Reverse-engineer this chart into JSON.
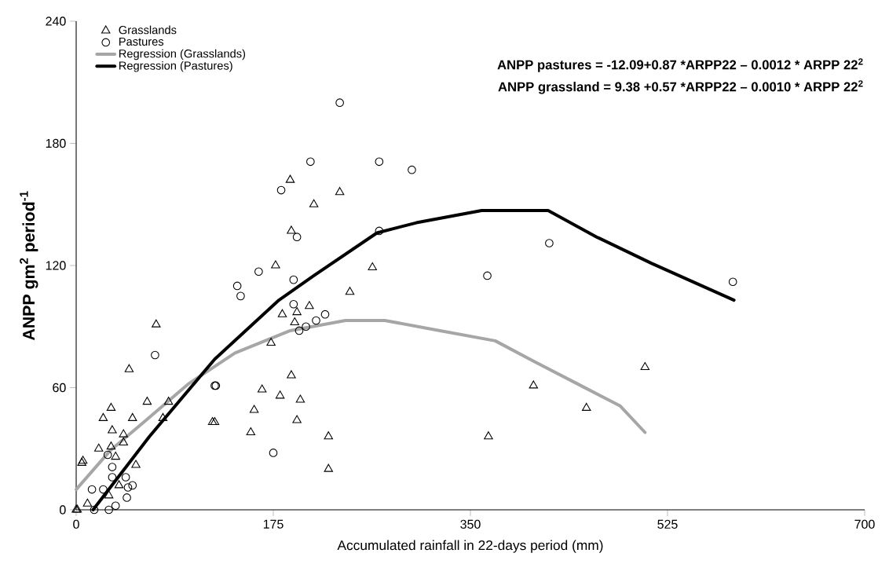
{
  "chart_data": {
    "type": "scatter",
    "xlabel": "Accumulated rainfall in 22-days period (mm)",
    "ylabel": "**ANPP gm$^{2}$ period$^{-1}$**",
    "xlim": [
      0,
      700
    ],
    "ylim": [
      0,
      240
    ],
    "xticks": [
      0,
      175,
      350,
      525,
      700
    ],
    "yticks": [
      0,
      60,
      120,
      180,
      240
    ],
    "grid": false,
    "legend": "top left",
    "annotations": [
      "ANPP pastures = -12.09+0.87 *ARPP22 – 0.0012 * ARPP 22$^{2}$",
      "ANPP grassland = 9.38 +0.57 *ARPP22 – 0.0010 * ARPP 22$^{2}$"
    ],
    "series": [
      {
        "name": "Grasslands",
        "marker": "triangle",
        "color": "#000000",
        "x": [
          0,
          1,
          5,
          6,
          10,
          29,
          38,
          20,
          31,
          42,
          35,
          53,
          32,
          42,
          24,
          31,
          50,
          63,
          47,
          71,
          82,
          77,
          121,
          123,
          155,
          158,
          165,
          181,
          191,
          199,
          196,
          224,
          224,
          173,
          183,
          196,
          194,
          207,
          177,
          191,
          243,
          263,
          190,
          211,
          234,
          366,
          406,
          453,
          505
        ],
        "values": [
          0,
          0,
          23,
          24,
          3,
          7,
          12,
          30,
          31,
          33,
          26,
          22,
          39,
          37,
          45,
          50,
          45,
          53,
          69,
          91,
          53,
          45,
          43,
          43,
          38,
          49,
          59,
          56,
          66,
          54,
          44,
          36,
          20,
          82,
          96,
          97,
          92,
          100,
          120,
          137,
          107,
          119,
          162,
          150,
          156,
          36,
          61,
          50,
          70
        ]
      },
      {
        "name": "Pastures",
        "marker": "circle",
        "color": "#000000",
        "x": [
          16,
          14,
          29,
          35,
          45,
          24,
          46,
          50,
          44,
          32,
          32,
          28,
          70,
          123,
          124,
          175,
          143,
          146,
          162,
          193,
          193,
          198,
          204,
          213,
          221,
          182,
          196,
          208,
          234,
          269,
          269,
          298,
          365,
          420,
          583
        ],
        "values": [
          0,
          10,
          0,
          2,
          6,
          10,
          11,
          12,
          16,
          16,
          21,
          27,
          76,
          61,
          61,
          28,
          110,
          105,
          117,
          113,
          101,
          88,
          90,
          93,
          96,
          157,
          134,
          171,
          200,
          171,
          137,
          167,
          115,
          131,
          112
        ]
      },
      {
        "name": "Regression (Grasslands)",
        "type": "line",
        "marker": "none",
        "color": "#a6a6a6",
        "x": [
          0,
          30,
          62,
          100,
          141,
          190,
          239,
          274,
          323,
          372,
          406,
          448,
          483,
          505
        ],
        "values": [
          10,
          29,
          44,
          62,
          77,
          88,
          93,
          93,
          88,
          83,
          73,
          61,
          51,
          38
        ]
      },
      {
        "name": "Regression (Pastures)",
        "type": "line",
        "marker": "none",
        "color": "#000000",
        "x": [
          15,
          65,
          123,
          180,
          211,
          267,
          302,
          360,
          392,
          419,
          462,
          511,
          584
        ],
        "values": [
          0,
          36,
          74,
          103,
          115,
          136,
          141,
          147,
          147,
          147,
          134,
          121,
          103
        ]
      }
    ]
  }
}
